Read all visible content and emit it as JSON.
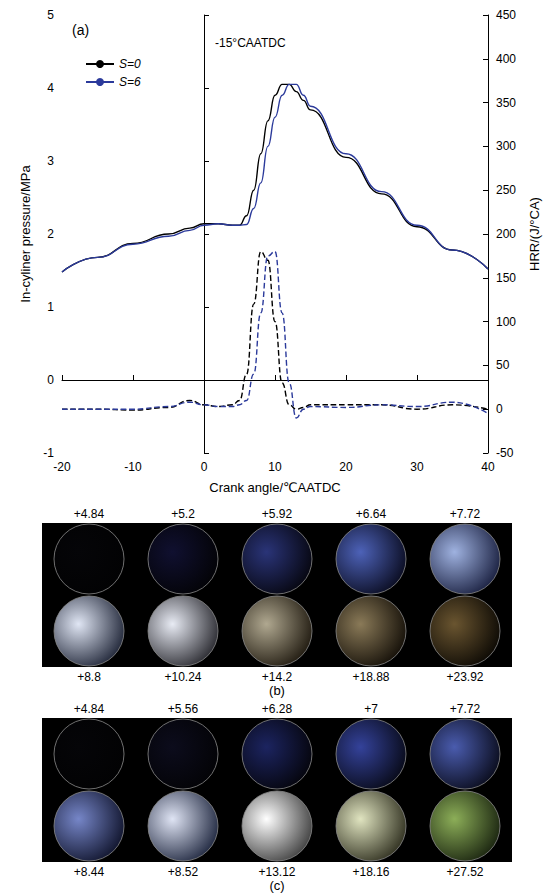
{
  "chart_data": {
    "type": "line",
    "panel_label": "(a)",
    "annotation": "-15°CAATDC",
    "x_label": "Crank angle/℃AATDC",
    "y_label": "In-cyliner pressure/MPa",
    "y2_label": "HRR/(J/°CA)",
    "x": [
      -20,
      -15,
      -10,
      -5,
      -2,
      0,
      2,
      4,
      5,
      6,
      7,
      8,
      9,
      10,
      11,
      12,
      13,
      14,
      15,
      20,
      25,
      30,
      35,
      40
    ],
    "series": [
      {
        "name": "S=0",
        "color": "#000000",
        "line_style": "solid",
        "values": [
          1.48,
          1.68,
          1.87,
          2.0,
          2.08,
          2.14,
          2.14,
          2.12,
          2.12,
          2.25,
          2.6,
          3.1,
          3.55,
          3.9,
          4.05,
          4.05,
          3.95,
          3.83,
          3.7,
          3.05,
          2.55,
          2.1,
          1.78,
          1.52
        ]
      },
      {
        "name": "S=6",
        "color": "#2b3a9b",
        "line_style": "solid",
        "values": [
          1.48,
          1.68,
          1.86,
          1.97,
          2.05,
          2.12,
          2.14,
          2.12,
          2.12,
          2.13,
          2.35,
          2.7,
          3.2,
          3.6,
          3.9,
          4.05,
          4.05,
          3.9,
          3.75,
          3.1,
          2.58,
          2.12,
          1.78,
          1.52
        ]
      },
      {
        "name": "S=0",
        "color": "#000000",
        "line_style": "dashed",
        "axis": "y2",
        "values": [
          0,
          0,
          -1,
          2,
          10,
          5,
          3,
          5,
          10,
          40,
          120,
          180,
          170,
          100,
          30,
          5,
          0,
          2,
          5,
          5,
          5,
          0,
          5,
          0
        ]
      },
      {
        "name": "S=6",
        "color": "#2b3a9b",
        "line_style": "dashed",
        "axis": "y2",
        "values": [
          0,
          0,
          0,
          3,
          8,
          5,
          3,
          3,
          5,
          10,
          40,
          110,
          175,
          180,
          110,
          30,
          -10,
          0,
          3,
          2,
          5,
          3,
          8,
          -5
        ]
      }
    ],
    "xlim": [
      -20,
      40
    ],
    "xticks": [
      -20,
      -10,
      0,
      10,
      20,
      30,
      40
    ],
    "ylim": [
      -1,
      5
    ],
    "yticks": [
      -1,
      0,
      1,
      2,
      3,
      4,
      5
    ],
    "y2lim": [
      -50,
      450
    ],
    "y2ticks": [
      -50,
      0,
      50,
      100,
      150,
      200,
      250,
      300,
      350,
      400,
      450
    ],
    "legend": "upper left",
    "grid": false
  },
  "photo_panels": [
    {
      "label": "(b)",
      "top_row": [
        "+4.84",
        "+5.2",
        "+5.92",
        "+6.64",
        "+7.72"
      ],
      "bottom_row": [
        "+8.8",
        "+10.24",
        "+14.2",
        "+18.88",
        "+23.92"
      ]
    },
    {
      "label": "(c)",
      "top_row": [
        "+4.84",
        "+5.56",
        "+6.28",
        "+7",
        "+7.72"
      ],
      "bottom_row": [
        "+8.44",
        "+8.52",
        "+13.12",
        "+18.16",
        "+27.52"
      ]
    }
  ]
}
